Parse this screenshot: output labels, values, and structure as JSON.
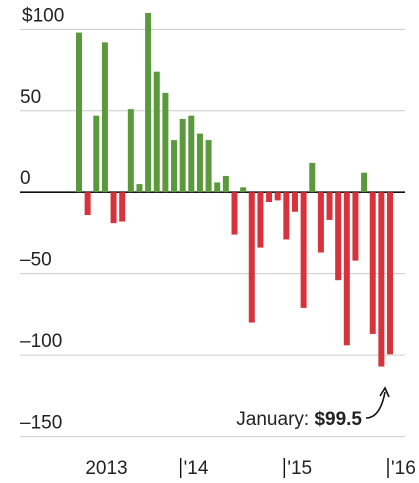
{
  "chart_data": {
    "type": "bar",
    "categories": [
      "2013",
      null,
      null,
      null,
      null,
      null,
      null,
      null,
      null,
      null,
      null,
      null,
      "'14",
      null,
      null,
      null,
      null,
      null,
      null,
      null,
      null,
      null,
      null,
      null,
      "'15",
      null,
      null,
      null,
      null,
      null,
      null,
      null,
      null,
      null,
      null,
      null,
      "'16"
    ],
    "values": [
      98,
      -14,
      47,
      92,
      -19,
      -18,
      51,
      5,
      110,
      74,
      61,
      32,
      45,
      47,
      36,
      32,
      6,
      10,
      -26,
      3,
      -80,
      -34,
      -6,
      -5,
      -29,
      -12,
      -71,
      18,
      -37,
      -17,
      -54,
      -94,
      -42,
      12,
      -87,
      -107,
      -99.5
    ],
    "value_labels": [
      null,
      null,
      null,
      null,
      null,
      null,
      null,
      null,
      null,
      null,
      null,
      null,
      null,
      null,
      null,
      null,
      null,
      null,
      null,
      null,
      null,
      null,
      null,
      null,
      null,
      null,
      null,
      null,
      null,
      null,
      null,
      null,
      null,
      null,
      null,
      null,
      "$99.5"
    ],
    "annotation": "January:",
    "positive_color": "#5b9a3c",
    "negative_color": "#d8323c",
    "ylim": [
      -165,
      118
    ],
    "yticks": [
      {
        "value": 100,
        "label": "$100"
      },
      50,
      0,
      {
        "value": -50,
        "label": "–50"
      },
      {
        "value": -100,
        "label": "–100"
      },
      {
        "value": -150,
        "label": "–150"
      }
    ],
    "grid": true
  }
}
